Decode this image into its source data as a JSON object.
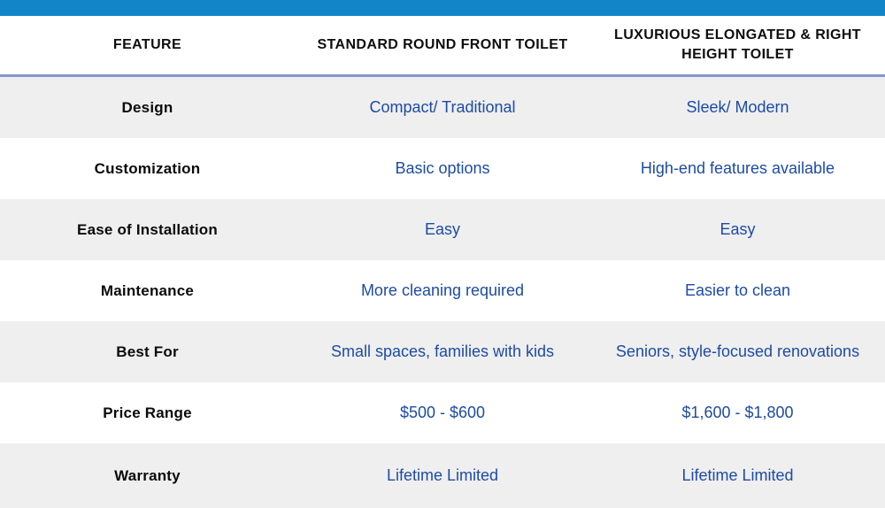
{
  "colors": {
    "accent_bar": "#1285c8",
    "header_border": "#8497cf",
    "row_alt_bg": "#efefef",
    "value_text": "#1d4ba5",
    "label_text": "#0b0b0b"
  },
  "header": {
    "feature": "FEATURE",
    "standard": "STANDARD ROUND FRONT TOILET",
    "luxurious": "LUXURIOUS ELONGATED & RIGHT HEIGHT TOILET"
  },
  "rows": [
    {
      "feature": "Design",
      "standard": "Compact/ Traditional",
      "luxurious": "Sleek/ Modern"
    },
    {
      "feature": "Customization",
      "standard": "Basic options",
      "luxurious": "High-end features available"
    },
    {
      "feature": "Ease of Installation",
      "standard": "Easy",
      "luxurious": "Easy"
    },
    {
      "feature": "Maintenance",
      "standard": "More cleaning required",
      "luxurious": "Easier to clean"
    },
    {
      "feature": "Best For",
      "standard": "Small spaces, families with kids",
      "luxurious": "Seniors, style-focused renovations"
    },
    {
      "feature": "Price Range",
      "standard": "$500 - $600",
      "luxurious": "$1,600 - $1,800"
    },
    {
      "feature": "Warranty",
      "standard": "Lifetime Limited",
      "luxurious": "Lifetime Limited"
    }
  ],
  "chart_data": {
    "type": "table",
    "title": "",
    "columns": [
      "FEATURE",
      "STANDARD ROUND FRONT TOILET",
      "LUXURIOUS ELONGATED & RIGHT HEIGHT TOILET"
    ],
    "rows": [
      [
        "Design",
        "Compact/ Traditional",
        "Sleek/ Modern"
      ],
      [
        "Customization",
        "Basic options",
        "High-end features available"
      ],
      [
        "Ease of Installation",
        "Easy",
        "Easy"
      ],
      [
        "Maintenance",
        "More cleaning required",
        "Easier to clean"
      ],
      [
        "Best For",
        "Small spaces, families with kids",
        "Seniors, style-focused renovations"
      ],
      [
        "Price Range",
        "$500 - $600",
        "$1,600 - $1,800"
      ],
      [
        "Warranty",
        "Lifetime Limited",
        "Lifetime Limited"
      ]
    ],
    "layout_hints": {
      "alternating_row_shading": true,
      "label_column_style": "bold black",
      "value_columns_style": "royal blue",
      "top_accent_bar": true
    }
  }
}
